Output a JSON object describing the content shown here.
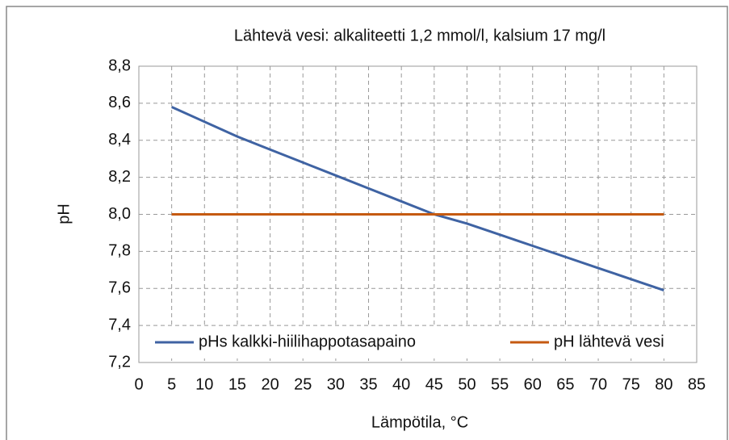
{
  "chart_data": {
    "type": "line",
    "title": "Lähtevä vesi: alkaliteetti 1,2 mmol/l, kalsium 17 mg/l",
    "x_label": "Lämpötila, °C",
    "y_label": "pH",
    "x": [
      5,
      10,
      15,
      20,
      25,
      30,
      35,
      40,
      45,
      50,
      55,
      60,
      65,
      70,
      75,
      80
    ],
    "series": [
      {
        "name": "pHs kalkki-hiilihappotasapaino",
        "color": "#3f63a3",
        "values": [
          8.58,
          8.5,
          8.42,
          8.35,
          8.28,
          8.21,
          8.14,
          8.07,
          8.0,
          7.95,
          7.89,
          7.83,
          7.77,
          7.71,
          7.65,
          7.59
        ]
      },
      {
        "name": "pH lähtevä vesi",
        "color": "#c55a11",
        "values": [
          8.0,
          8.0,
          8.0,
          8.0,
          8.0,
          8.0,
          8.0,
          8.0,
          8.0,
          8.0,
          8.0,
          8.0,
          8.0,
          8.0,
          8.0,
          8.0
        ]
      }
    ],
    "xlim": [
      0,
      85
    ],
    "xticks": [
      0,
      5,
      10,
      15,
      20,
      25,
      30,
      35,
      40,
      45,
      50,
      55,
      60,
      65,
      70,
      75,
      80,
      85
    ],
    "ylim": [
      7.2,
      8.8
    ],
    "yticks": [
      {
        "value": 7.2,
        "label": "7,2"
      },
      {
        "value": 7.4,
        "label": "7,4"
      },
      {
        "value": 7.6,
        "label": "7,6"
      },
      {
        "value": 7.8,
        "label": "7,8"
      },
      {
        "value": 8.0,
        "label": "8,0"
      },
      {
        "value": 8.2,
        "label": "8,2"
      },
      {
        "value": 8.4,
        "label": "8,4"
      },
      {
        "value": 8.6,
        "label": "8,6"
      },
      {
        "value": 8.8,
        "label": "8,8"
      }
    ],
    "grid": true,
    "legend": "bottom"
  }
}
